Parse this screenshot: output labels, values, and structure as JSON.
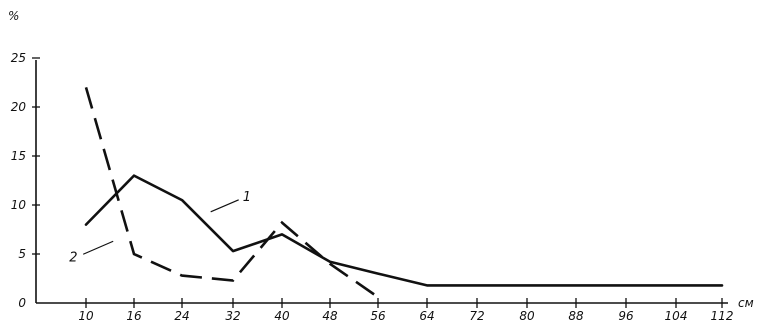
{
  "chart_data": {
    "type": "line",
    "title": "",
    "xlabel": "см",
    "ylabel": "%",
    "x_ticks": [
      "10",
      "16",
      "24",
      "32",
      "40",
      "48",
      "56",
      "64",
      "72",
      "80",
      "88",
      "96",
      "104",
      "112"
    ],
    "y_ticks": [
      "0",
      "5",
      "10",
      "15",
      "20",
      "25"
    ],
    "ylim": [
      0,
      25
    ],
    "grid": false,
    "series": [
      {
        "name": "1",
        "style": "solid",
        "x": [
          10,
          16,
          24,
          32,
          40,
          48,
          56,
          64,
          72,
          80,
          88,
          96,
          104,
          112
        ],
        "y": [
          8,
          13,
          10.5,
          5.3,
          7,
          4.2,
          3,
          1.8,
          1.8,
          1.8,
          1.8,
          1.8,
          1.8,
          1.8
        ]
      },
      {
        "name": "2",
        "style": "dashed",
        "x": [
          10,
          16,
          24,
          32,
          40,
          48,
          56
        ],
        "y": [
          22,
          5,
          2.8,
          2.3,
          8.2,
          4,
          0.6
        ]
      }
    ]
  }
}
